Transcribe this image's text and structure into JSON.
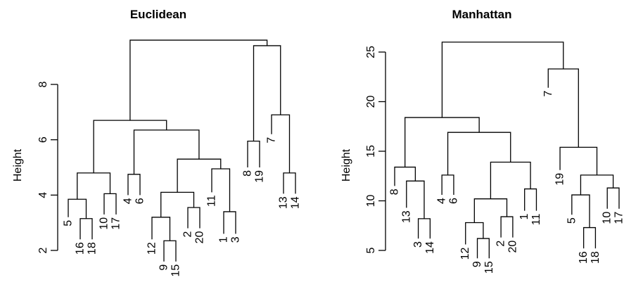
{
  "panels": [
    {
      "title": "Euclidean",
      "ylabel": "Height",
      "yticks": [
        2,
        4,
        6,
        8
      ],
      "ylim": [
        2,
        9.7
      ],
      "nodes": {
        "n14": {
          "h": 3.4,
          "c": [
            "1",
            "3"
          ]
        },
        "n13": {
          "h": 3.55,
          "c": [
            "2",
            "20"
          ]
        },
        "n15": {
          "h": 2.35,
          "c": [
            "9",
            "15"
          ]
        },
        "n12": {
          "h": 3.2,
          "c": [
            "12",
            "n15"
          ]
        },
        "n11": {
          "h": 4.1,
          "c": [
            "n12",
            "n13"
          ]
        },
        "n10": {
          "h": 4.95,
          "c": [
            "11",
            "n14"
          ]
        },
        "n9": {
          "h": 5.3,
          "c": [
            "n11",
            "n10"
          ]
        },
        "n8": {
          "h": 4.75,
          "c": [
            "4",
            "6"
          ]
        },
        "n7": {
          "h": 6.35,
          "c": [
            "n8",
            "n9"
          ]
        },
        "n6": {
          "h": 3.15,
          "c": [
            "16",
            "18"
          ]
        },
        "n5": {
          "h": 3.85,
          "c": [
            "5",
            "n6"
          ]
        },
        "n4": {
          "h": 4.05,
          "c": [
            "10",
            "17"
          ]
        },
        "n3": {
          "h": 4.8,
          "c": [
            "n5",
            "n4"
          ]
        },
        "n2": {
          "h": 6.7,
          "c": [
            "n3",
            "n7"
          ]
        },
        "n18": {
          "h": 5.95,
          "c": [
            "8",
            "19"
          ]
        },
        "n19": {
          "h": 4.8,
          "c": [
            "13",
            "14"
          ]
        },
        "n17": {
          "h": 6.9,
          "c": [
            "7",
            "n19"
          ]
        },
        "n16": {
          "h": 9.4,
          "c": [
            "n18",
            "n17"
          ]
        },
        "n1": {
          "h": 9.6,
          "c": [
            "n2",
            "n16"
          ]
        }
      },
      "root": "n1",
      "leafHeights": {
        "5": 3.2,
        "16": 2.4,
        "18": 2.4,
        "10": 3.3,
        "17": 3.3,
        "4": 4.0,
        "6": 4.0,
        "12": 2.4,
        "9": 1.6,
        "15": 1.6,
        "2": 2.8,
        "20": 2.8,
        "11": 4.1,
        "1": 2.6,
        "3": 2.6,
        "8": 5.0,
        "19": 5.0,
        "7": 6.2,
        "13": 4.05,
        "14": 4.05
      },
      "leaves": [
        "5",
        "16",
        "18",
        "10",
        "17",
        "4",
        "6",
        "12",
        "9",
        "15",
        "2",
        "20",
        "11",
        "1",
        "3",
        "8",
        "19",
        "7",
        "13",
        "14"
      ]
    },
    {
      "title": "Manhattan",
      "ylabel": "Height",
      "yticks": [
        5,
        10,
        15,
        20,
        25
      ],
      "ylim": [
        5,
        26.5
      ],
      "nodes": {
        "n7": {
          "h": 8.2,
          "c": [
            "3",
            "14"
          ]
        },
        "n6": {
          "h": 12.0,
          "c": [
            "13",
            "n7"
          ]
        },
        "n5": {
          "h": 13.4,
          "c": [
            "8",
            "n6"
          ]
        },
        "n9": {
          "h": 12.6,
          "c": [
            "4",
            "6"
          ]
        },
        "n14": {
          "h": 6.2,
          "c": [
            "9",
            "15"
          ]
        },
        "n13": {
          "h": 7.8,
          "c": [
            "12",
            "n14"
          ]
        },
        "n15": {
          "h": 8.4,
          "c": [
            "2",
            "20"
          ]
        },
        "n12": {
          "h": 10.2,
          "c": [
            "n13",
            "n15"
          ]
        },
        "n16": {
          "h": 11.2,
          "c": [
            "1",
            "11"
          ]
        },
        "n11": {
          "h": 13.9,
          "c": [
            "n12",
            "n16"
          ]
        },
        "n10": {
          "h": 16.9,
          "c": [
            "n9",
            "n11"
          ]
        },
        "n4": {
          "h": 18.4,
          "c": [
            "n5",
            "n10"
          ]
        },
        "n22": {
          "h": 7.3,
          "c": [
            "16",
            "18"
          ]
        },
        "n21": {
          "h": 10.6,
          "c": [
            "5",
            "n22"
          ]
        },
        "n23": {
          "h": 11.3,
          "c": [
            "10",
            "17"
          ]
        },
        "n20": {
          "h": 12.6,
          "c": [
            "n21",
            "n23"
          ]
        },
        "n19": {
          "h": 15.4,
          "c": [
            "19",
            "n20"
          ]
        },
        "n18": {
          "h": 23.3,
          "c": [
            "7",
            "n19"
          ]
        },
        "n1": {
          "h": 26.0,
          "c": [
            "n4",
            "n18"
          ]
        }
      },
      "root": "n1",
      "leafHeights": {
        "8": 11.5,
        "13": 9.3,
        "3": 6.2,
        "14": 6.2,
        "4": 10.6,
        "6": 10.6,
        "12": 5.6,
        "9": 4.2,
        "15": 4.2,
        "2": 6.3,
        "20": 6.3,
        "1": 9.0,
        "11": 9.0,
        "7": 21.4,
        "19": 13.1,
        "5": 8.6,
        "16": 5.2,
        "18": 5.2,
        "10": 9.2,
        "17": 9.2
      },
      "leaves": [
        "8",
        "13",
        "3",
        "14",
        "4",
        "6",
        "12",
        "9",
        "15",
        "2",
        "20",
        "1",
        "11",
        "7",
        "19",
        "5",
        "16",
        "18",
        "10",
        "17"
      ]
    }
  ]
}
